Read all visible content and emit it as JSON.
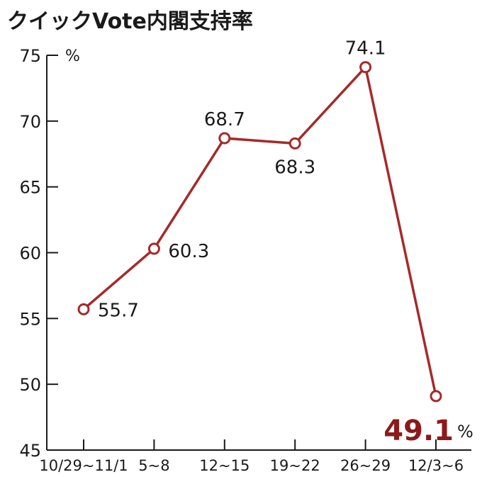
{
  "chart_data": {
    "type": "line",
    "title": "クイックVote内閣支持率",
    "y_unit": "%",
    "categories": [
      "10/29~11/1",
      "5~8",
      "12~15",
      "19~22",
      "26~29",
      "12/3~6"
    ],
    "series": [
      {
        "name": "内閣支持率",
        "values": [
          55.7,
          60.3,
          68.7,
          68.3,
          74.1,
          49.1
        ]
      }
    ],
    "data_labels": [
      "55.7",
      "60.3",
      "68.7",
      "68.3",
      "74.1",
      "49.1"
    ],
    "highlight_unit": "%",
    "ylim": [
      45,
      75
    ],
    "yticks": [
      "45",
      "50",
      "55",
      "60",
      "65",
      "70",
      "75"
    ],
    "grid": false,
    "legend": "none",
    "colors": {
      "line": "#a52a2a",
      "marker_fill": "#ffffff",
      "highlight_label": "#8b1a1a",
      "axis": "#1a1a1a"
    }
  }
}
